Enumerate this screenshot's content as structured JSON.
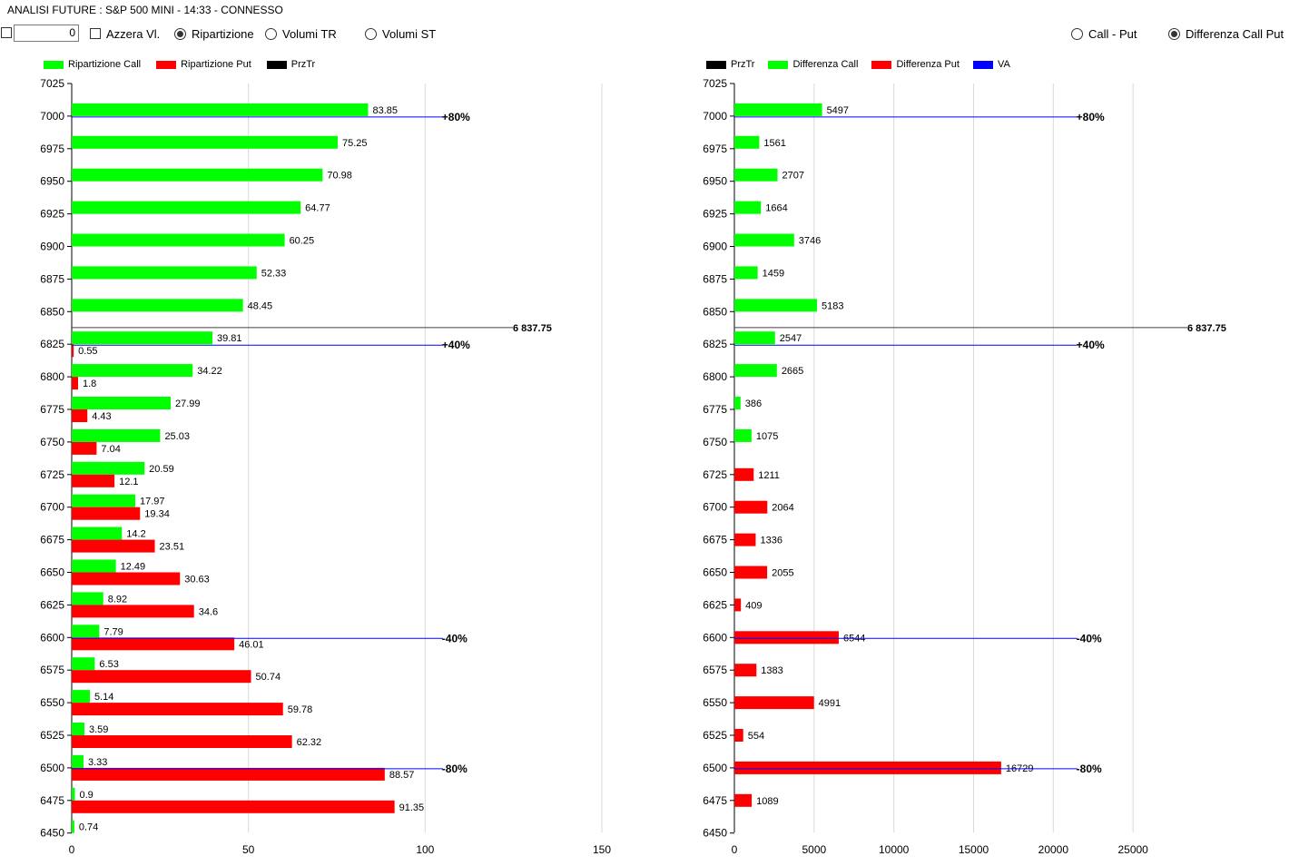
{
  "title": "ANALISI FUTURE : S&P 500 MINI - 14:33 - CONNESSO",
  "toolbar": {
    "numeric_value": "0",
    "reset_label": "Azzera Vl.",
    "options": [
      "Ripartizione",
      "Volumi TR",
      "Volumi ST"
    ],
    "selected_option": "Ripartizione",
    "right_options": [
      "Call - Put",
      "Differenza Call Put"
    ],
    "right_selected": "Differenza Call Put"
  },
  "colors": {
    "call": "#00ff00",
    "put": "#ff0000",
    "prztr": "#000000",
    "va": "#0000ff",
    "grid": "#d9d9d9"
  },
  "left_legend": [
    {
      "label": "Ripartizione Call",
      "color": "#00ff00"
    },
    {
      "label": "Ripartizione Put",
      "color": "#ff0000"
    },
    {
      "label": "PrzTr",
      "color": "#000000"
    }
  ],
  "right_legend": [
    {
      "label": "PrzTr",
      "color": "#000000"
    },
    {
      "label": "Differenza Call",
      "color": "#00ff00"
    },
    {
      "label": "Differenza Put",
      "color": "#ff0000"
    },
    {
      "label": "VA",
      "color": "#0000ff"
    }
  ],
  "chart_data": [
    {
      "type": "bar",
      "orientation": "horizontal",
      "y_ticks": [
        7025,
        7000,
        6975,
        6950,
        6925,
        6900,
        6875,
        6850,
        6825,
        6800,
        6775,
        6750,
        6725,
        6700,
        6675,
        6650,
        6625,
        6600,
        6575,
        6550,
        6525,
        6500,
        6475,
        6450
      ],
      "x_ticks": [
        0,
        50,
        100,
        150
      ],
      "xlim": [
        0,
        150
      ],
      "levels": [
        7000,
        6975,
        6950,
        6925,
        6900,
        6875,
        6850,
        6825,
        6800,
        6775,
        6750,
        6725,
        6700,
        6675,
        6650,
        6625,
        6600,
        6575,
        6550,
        6525,
        6500,
        6475,
        6450
      ],
      "series": [
        {
          "name": "Ripartizione Call",
          "values": [
            "83.85",
            "75.25",
            "70.98",
            "64.77",
            "60.25",
            "52.33",
            "48.45",
            "39.81",
            "34.22",
            "27.99",
            "25.03",
            "20.59",
            "17.97",
            "14.2",
            "12.49",
            "8.92",
            "7.79",
            "6.53",
            "5.14",
            "3.59",
            "3.33",
            "0.9",
            "0.74"
          ]
        },
        {
          "name": "Ripartizione Put",
          "values": [
            null,
            null,
            null,
            null,
            null,
            null,
            null,
            "0.55",
            "1.8",
            "4.43",
            "7.04",
            "12.1",
            "19.34",
            "23.51",
            "30.63",
            "34.6",
            "46.01",
            "50.74",
            "59.78",
            "62.32",
            "88.57",
            "91.35",
            null
          ]
        }
      ],
      "przTr": {
        "value": 6837.75,
        "label": "6 837.75"
      },
      "va_lines": [
        {
          "level": 7000,
          "label": "+80%"
        },
        {
          "level": 6825,
          "label": "+40%"
        },
        {
          "level": 6600,
          "label": "-40%"
        },
        {
          "level": 6500,
          "label": "-80%"
        }
      ],
      "va_line_x": 105
    },
    {
      "type": "bar",
      "orientation": "horizontal",
      "y_ticks": [
        7025,
        7000,
        6975,
        6950,
        6925,
        6900,
        6875,
        6850,
        6825,
        6800,
        6775,
        6750,
        6725,
        6700,
        6675,
        6650,
        6625,
        6600,
        6575,
        6550,
        6525,
        6500,
        6475,
        6450
      ],
      "x_ticks": [
        0,
        5000,
        10000,
        15000,
        20000,
        25000
      ],
      "xlim": [
        0,
        30000
      ],
      "levels": [
        7000,
        6975,
        6950,
        6925,
        6900,
        6875,
        6850,
        6825,
        6800,
        6775,
        6750,
        6725,
        6700,
        6675,
        6650,
        6625,
        6600,
        6575,
        6550,
        6525,
        6500,
        6475
      ],
      "series": [
        {
          "name": "Differenza Call",
          "values": [
            "5497",
            "1561",
            "2707",
            "1664",
            "3746",
            "1459",
            "5183",
            "2547",
            "2665",
            "386",
            "1075",
            null,
            null,
            null,
            null,
            null,
            null,
            null,
            null,
            null,
            null,
            null
          ]
        },
        {
          "name": "Differenza Put",
          "values": [
            null,
            null,
            null,
            null,
            null,
            null,
            null,
            null,
            null,
            null,
            null,
            "1211",
            "2064",
            "1336",
            "2055",
            "409",
            "6544",
            "1383",
            "4991",
            "554",
            "16729",
            "1089"
          ]
        }
      ],
      "przTr": {
        "value": 6837.75,
        "label": "6 837.75"
      },
      "va_lines": [
        {
          "level": 7000,
          "label": "+80%"
        },
        {
          "level": 6825,
          "label": "+40%"
        },
        {
          "level": 6600,
          "label": "-40%"
        },
        {
          "level": 6500,
          "label": "-80%"
        }
      ],
      "va_line_x": 21500
    }
  ]
}
